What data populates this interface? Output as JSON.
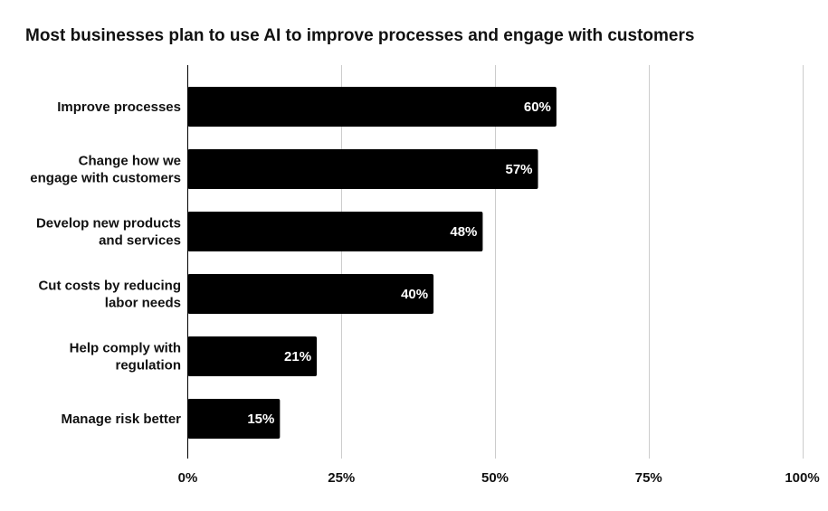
{
  "chart_data": {
    "type": "bar",
    "orientation": "horizontal",
    "title": "Most businesses plan to use AI to improve processes and engage with customers",
    "categories": [
      [
        "Improve processes"
      ],
      [
        "Change how we",
        "engage with customers"
      ],
      [
        "Develop new products",
        "and services"
      ],
      [
        "Cut costs by reducing",
        "labor needs"
      ],
      [
        "Help comply with",
        "regulation"
      ],
      [
        "Manage risk better"
      ]
    ],
    "values": [
      60,
      57,
      48,
      40,
      21,
      15
    ],
    "data_labels": [
      "60%",
      "57%",
      "48%",
      "40%",
      "21%",
      "15%"
    ],
    "xlim": [
      0,
      100
    ],
    "ticks": [
      0,
      25,
      50,
      75,
      100
    ],
    "tick_labels": [
      "0%",
      "25%",
      "50%",
      "75%",
      "100%"
    ],
    "grid": true,
    "legend": "none",
    "xlabel": "",
    "ylabel": "",
    "colors": {
      "bar": "#000000",
      "grid": "#cccccc",
      "axis": "#000000",
      "data_label": "#ffffff",
      "text": "#111111"
    }
  }
}
